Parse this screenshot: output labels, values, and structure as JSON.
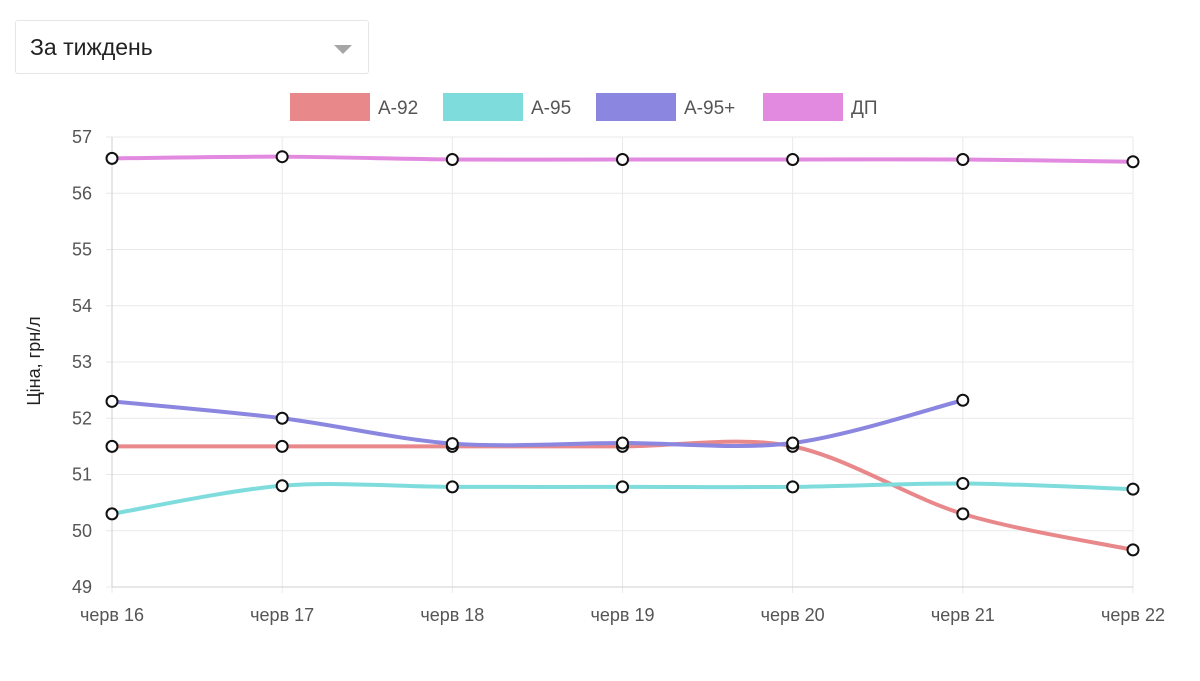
{
  "period_select": {
    "value": "За тиждень",
    "icon": "chevron-down-icon"
  },
  "chart_data": {
    "type": "line",
    "x": [
      "черв 16",
      "черв 17",
      "черв 18",
      "черв 19",
      "черв 20",
      "черв 21",
      "черв 22"
    ],
    "ylabel": "Ціна, грн/л",
    "xlabel": "",
    "ylim": [
      49,
      57
    ],
    "y_ticks": [
      49,
      50,
      51,
      52,
      53,
      54,
      55,
      56,
      57
    ],
    "grid": true,
    "legend_position": "top",
    "series": [
      {
        "name": "А-92",
        "color": "#e8888a",
        "values": [
          51.5,
          51.5,
          51.5,
          51.5,
          51.5,
          50.3,
          49.66
        ]
      },
      {
        "name": "А-95",
        "color": "#7fdcdc",
        "values": [
          50.3,
          50.8,
          50.78,
          50.78,
          50.78,
          50.84,
          50.74
        ]
      },
      {
        "name": "А-95+",
        "color": "#8b86df",
        "values": [
          52.3,
          52.0,
          51.55,
          51.56,
          51.56,
          52.32,
          null
        ]
      },
      {
        "name": "ДП",
        "color": "#e28ae0",
        "values": [
          56.62,
          56.65,
          56.6,
          56.6,
          56.6,
          56.6,
          56.56
        ]
      }
    ]
  }
}
